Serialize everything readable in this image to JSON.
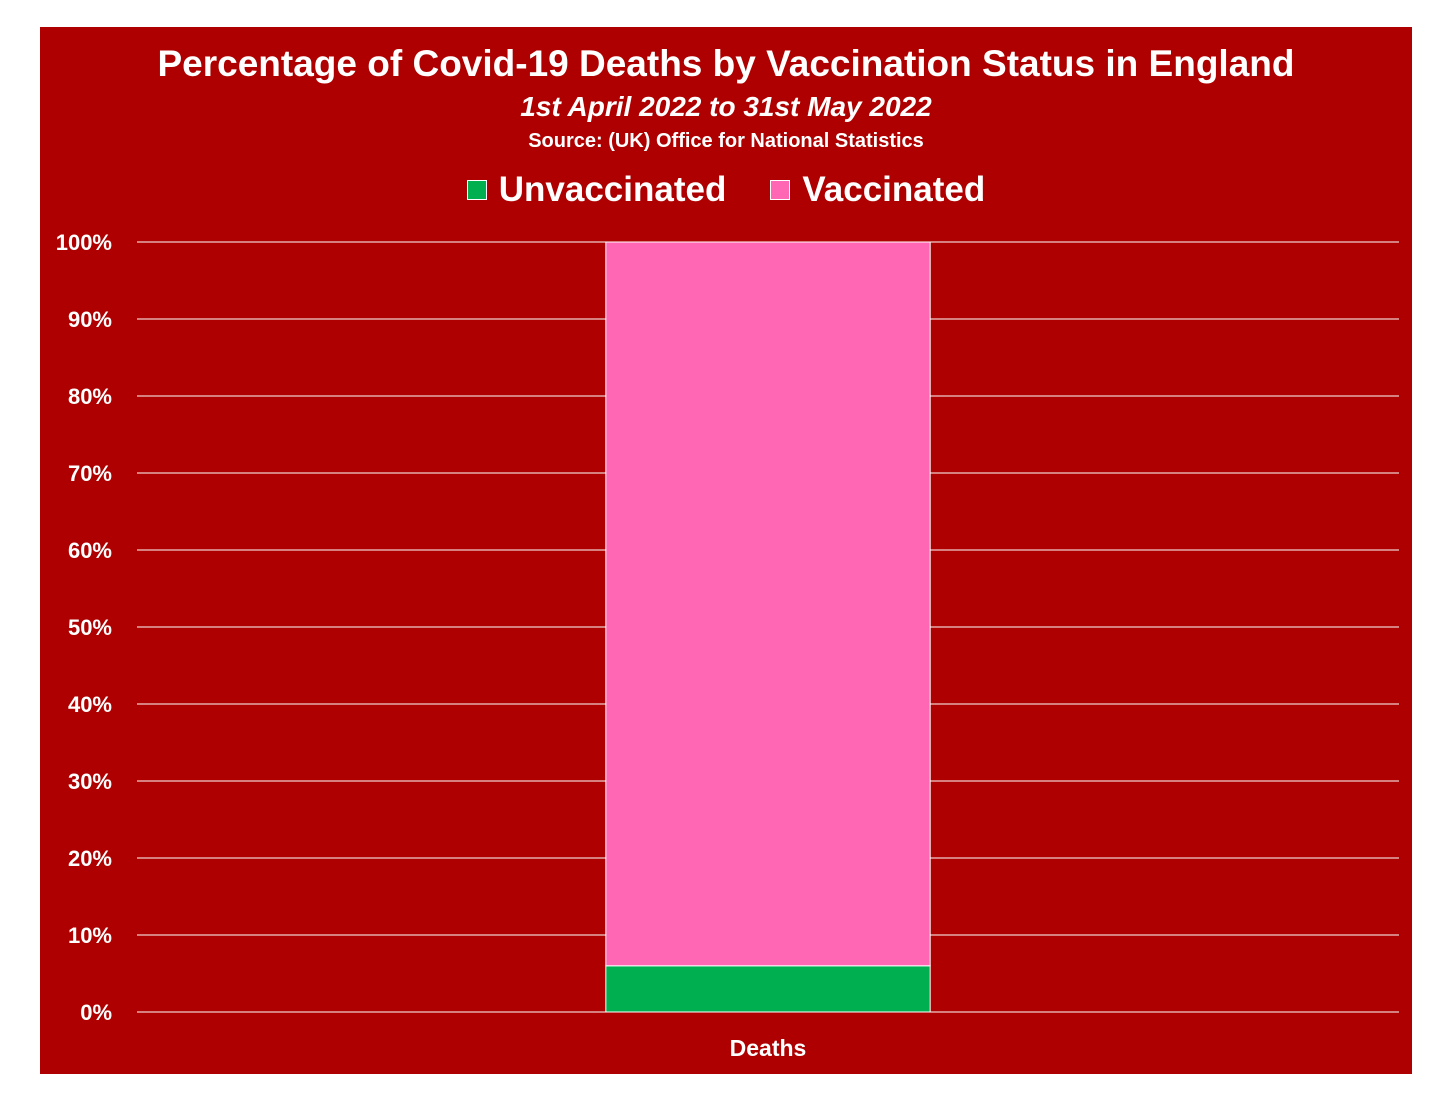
{
  "chart_data": {
    "type": "bar",
    "stacked": true,
    "title": "Percentage of Covid-19 Deaths by Vaccination Status in England",
    "subtitle": "1st April 2022 to 31st May 2022",
    "source": "Source: (UK) Office for National Statistics",
    "categories": [
      "Deaths"
    ],
    "series": [
      {
        "name": "Unvaccinated",
        "values": [
          6
        ],
        "color": "#00b050"
      },
      {
        "name": "Vaccinated",
        "values": [
          94
        ],
        "color": "#ff66b3"
      }
    ],
    "ylim": [
      0,
      100
    ],
    "yticks": [
      "0%",
      "10%",
      "20%",
      "30%",
      "40%",
      "50%",
      "60%",
      "70%",
      "80%",
      "90%",
      "100%"
    ],
    "grid": true,
    "legend_position": "top",
    "colors": {
      "background": "#ae0000",
      "text": "#ffffff",
      "grid": "#ffffff"
    }
  }
}
